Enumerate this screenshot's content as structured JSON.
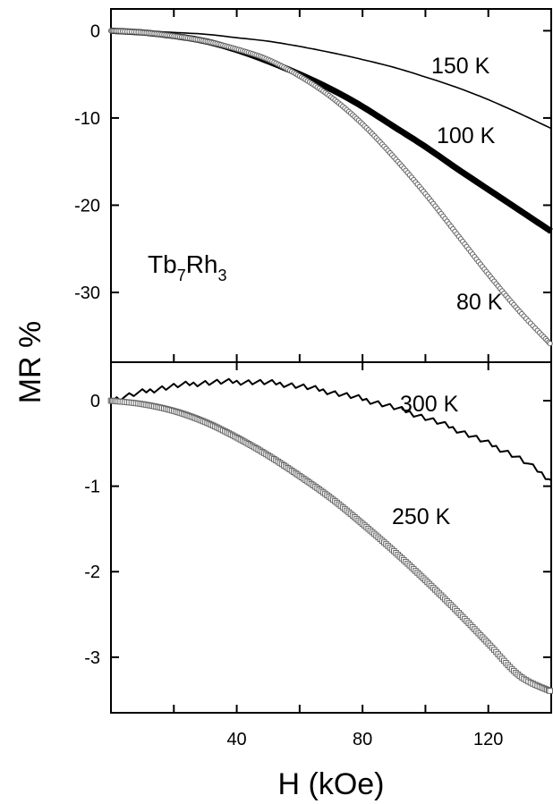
{
  "chart_data": [
    {
      "panel": "top",
      "type": "line",
      "ylabel": "MR %",
      "annotation": {
        "base": "Tb",
        "sub1": "7",
        "mid": "Rh",
        "sub2": "3"
      },
      "xlim": [
        0,
        140
      ],
      "ylim": [
        -38,
        2.5
      ],
      "yticks": [
        0,
        -10,
        -20,
        -30
      ],
      "xticks": [
        20,
        40,
        60,
        80,
        100,
        120,
        140
      ],
      "series": [
        {
          "label": "150 K",
          "style": "thin-line",
          "x": [
            0,
            10,
            20,
            30,
            40,
            50,
            60,
            70,
            80,
            90,
            100,
            110,
            120,
            130,
            140
          ],
          "y": [
            0,
            -0.05,
            -0.2,
            -0.4,
            -0.8,
            -1.2,
            -1.8,
            -2.5,
            -3.3,
            -4.2,
            -5.3,
            -6.5,
            -7.9,
            -9.5,
            -11.2
          ]
        },
        {
          "label": "100 K",
          "style": "thick-line",
          "x": [
            0,
            10,
            20,
            30,
            40,
            50,
            60,
            70,
            80,
            90,
            100,
            110,
            120,
            130,
            140
          ],
          "y": [
            0,
            -0.2,
            -0.6,
            -1.2,
            -2.2,
            -3.5,
            -5.0,
            -6.7,
            -8.7,
            -11.0,
            -13.3,
            -15.8,
            -18.2,
            -20.6,
            -23.0
          ]
        },
        {
          "label": "80 K",
          "style": "open-circles",
          "x": [
            0,
            10,
            20,
            30,
            40,
            50,
            60,
            70,
            80,
            90,
            100,
            110,
            120,
            130,
            140
          ],
          "y": [
            0,
            -0.2,
            -0.6,
            -1.2,
            -2.1,
            -3.3,
            -5.2,
            -7.6,
            -10.7,
            -14.5,
            -18.7,
            -23.3,
            -27.9,
            -32.2,
            -36.0
          ]
        }
      ]
    },
    {
      "panel": "bottom",
      "type": "line",
      "xlabel": "H (kOe)",
      "xlim": [
        0,
        140
      ],
      "ylim": [
        -3.65,
        0.45
      ],
      "yticks": [
        0,
        -1,
        -2,
        -3
      ],
      "xticks": [
        40,
        80,
        120
      ],
      "xticks_minor": [
        20,
        60,
        100,
        140
      ],
      "series": [
        {
          "label": "300 K",
          "style": "noisy-line",
          "x": [
            0,
            10,
            20,
            30,
            40,
            50,
            60,
            70,
            80,
            90,
            100,
            110,
            120,
            130,
            140
          ],
          "y": [
            0,
            0.1,
            0.17,
            0.21,
            0.22,
            0.21,
            0.17,
            0.1,
            0.02,
            -0.08,
            -0.2,
            -0.34,
            -0.5,
            -0.68,
            -0.93
          ]
        },
        {
          "label": "250 K",
          "style": "open-squares",
          "x": [
            0,
            10,
            20,
            30,
            40,
            50,
            60,
            70,
            80,
            90,
            100,
            110,
            120,
            130,
            140
          ],
          "y": [
            0,
            -0.04,
            -0.12,
            -0.25,
            -0.43,
            -0.64,
            -0.88,
            -1.14,
            -1.44,
            -1.76,
            -2.1,
            -2.46,
            -2.84,
            -3.22,
            -3.4
          ]
        }
      ]
    }
  ]
}
